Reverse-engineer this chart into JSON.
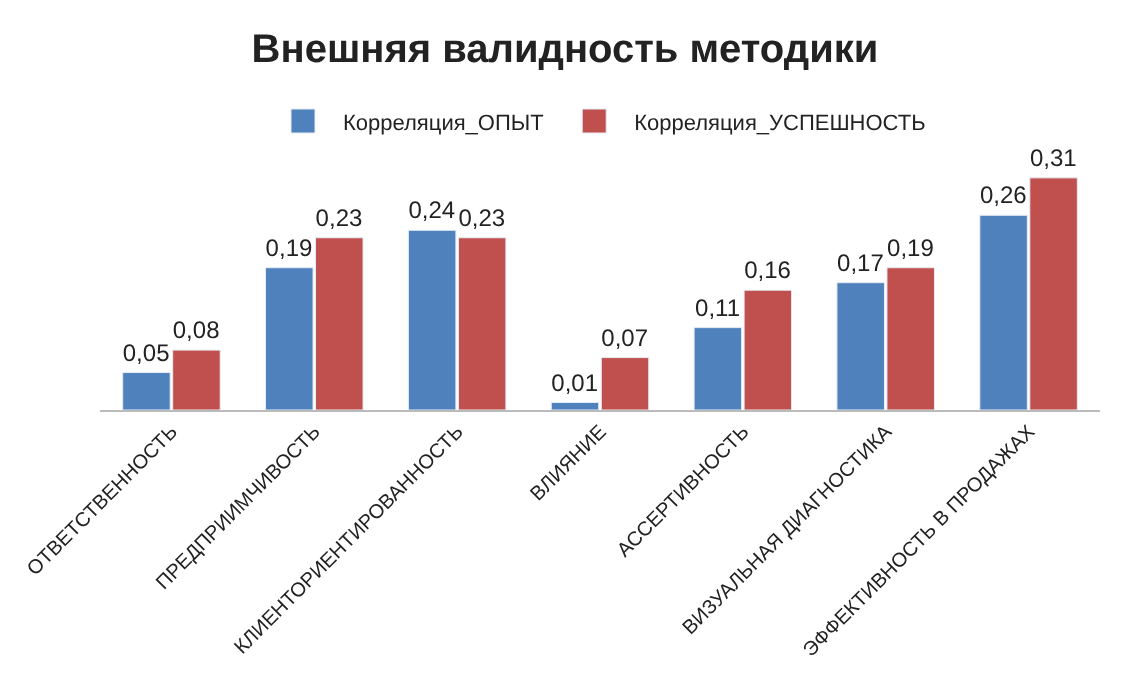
{
  "chart_data": {
    "type": "bar",
    "title": "Внешняя валидность методики",
    "legend": "top",
    "categories": [
      "ОТВЕТСТВЕННОСТЬ",
      "ПРЕДПРИИМЧИВОСТЬ",
      "КЛИЕНТОРИЕНТИРОВАННОСТЬ",
      "ВЛИЯНИЕ",
      "АССЕРТИВНОСТЬ",
      "ВИЗУАЛЬНАЯ ДИАГНОСТИКА",
      "ЭФФЕКТИВНОСТЬ В ПРОДАЖАХ"
    ],
    "series": [
      {
        "name": "Корреляция_ОПЫТ",
        "color": "#4f81bd",
        "values": [
          0.05,
          0.19,
          0.24,
          0.01,
          0.11,
          0.17,
          0.26
        ],
        "value_labels": [
          "0,05",
          "0,19",
          "0,24",
          "0,01",
          "0,11",
          "0,17",
          "0,26"
        ]
      },
      {
        "name": "Корреляция_УСПЕШНОСТЬ",
        "color": "#c0504d",
        "values": [
          0.08,
          0.23,
          0.23,
          0.07,
          0.16,
          0.19,
          0.31
        ],
        "value_labels": [
          "0,08",
          "0,23",
          "0,23",
          "0,07",
          "0,16",
          "0,19",
          "0,31"
        ]
      }
    ]
  }
}
